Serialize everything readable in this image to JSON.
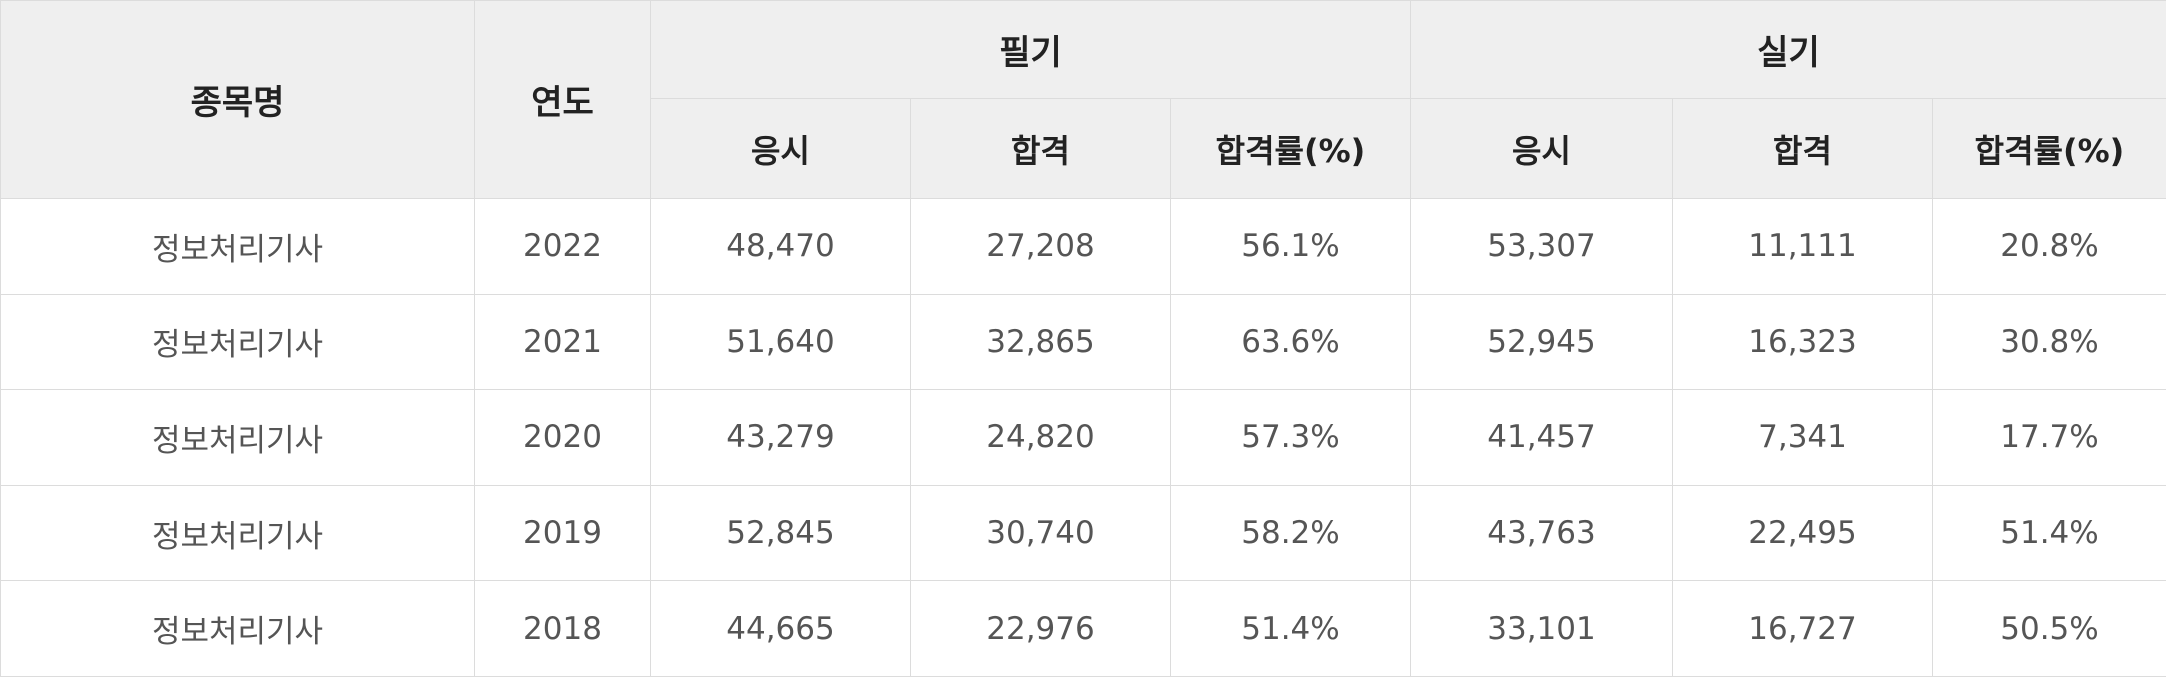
{
  "table": {
    "header": {
      "subject": "종목명",
      "year": "연도",
      "written_group": "필기",
      "practical_group": "실기",
      "written_cols": [
        "응시",
        "합격",
        "합격률(%)"
      ],
      "practical_cols": [
        "응시",
        "합격",
        "합격률(%)"
      ]
    },
    "rows": [
      {
        "subject": "정보처리기사",
        "year": "2022",
        "w_applied": "48,470",
        "w_passed": "27,208",
        "w_rate": "56.1%",
        "p_applied": "53,307",
        "p_passed": "11,111",
        "p_rate": "20.8%"
      },
      {
        "subject": "정보처리기사",
        "year": "2021",
        "w_applied": "51,640",
        "w_passed": "32,865",
        "w_rate": "63.6%",
        "p_applied": "52,945",
        "p_passed": "16,323",
        "p_rate": "30.8%"
      },
      {
        "subject": "정보처리기사",
        "year": "2020",
        "w_applied": "43,279",
        "w_passed": "24,820",
        "w_rate": "57.3%",
        "p_applied": "41,457",
        "p_passed": "7,341",
        "p_rate": "17.7%"
      },
      {
        "subject": "정보처리기사",
        "year": "2019",
        "w_applied": "52,845",
        "w_passed": "30,740",
        "w_rate": "58.2%",
        "p_applied": "43,763",
        "p_passed": "22,495",
        "p_rate": "51.4%"
      },
      {
        "subject": "정보처리기사",
        "year": "2018",
        "w_applied": "44,665",
        "w_passed": "22,976",
        "w_rate": "51.4%",
        "p_applied": "33,101",
        "p_passed": "16,727",
        "p_rate": "50.5%"
      }
    ]
  }
}
